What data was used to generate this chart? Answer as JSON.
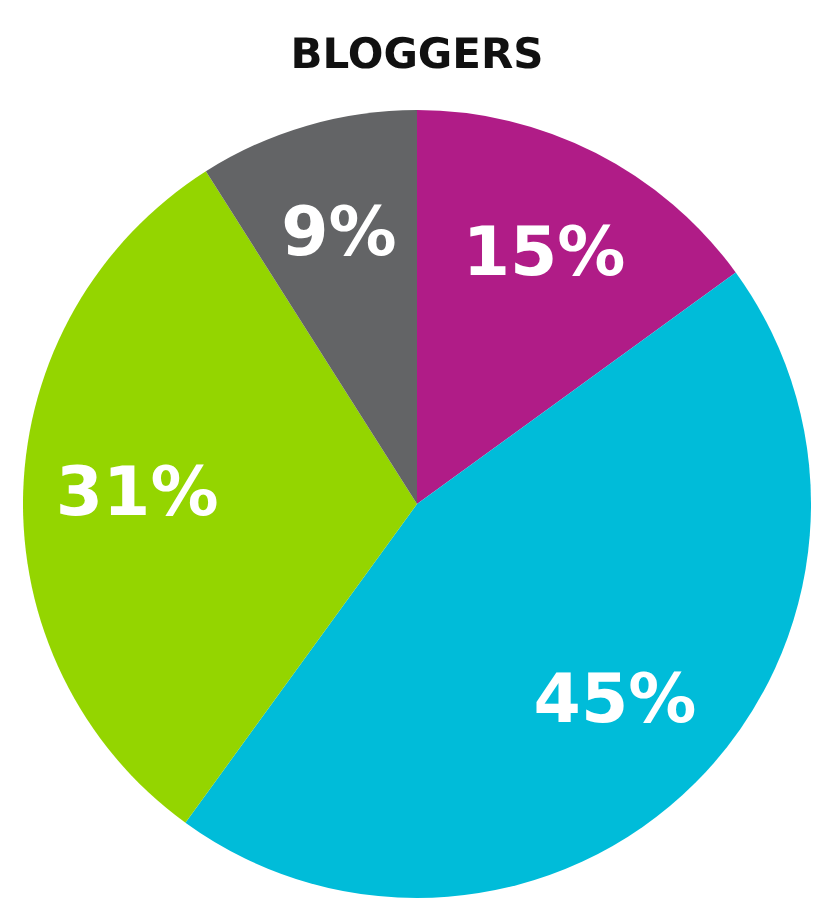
{
  "chart_data": {
    "type": "pie",
    "title": "BLOGGERS",
    "categories": [
      null,
      null,
      null,
      null
    ],
    "values": [
      15,
      45,
      31,
      9
    ],
    "colors": [
      "#b01c87",
      "#00bcd9",
      "#94d500",
      "#636466"
    ],
    "value_labels": [
      "15%",
      "45%",
      "31%",
      "9%"
    ]
  }
}
